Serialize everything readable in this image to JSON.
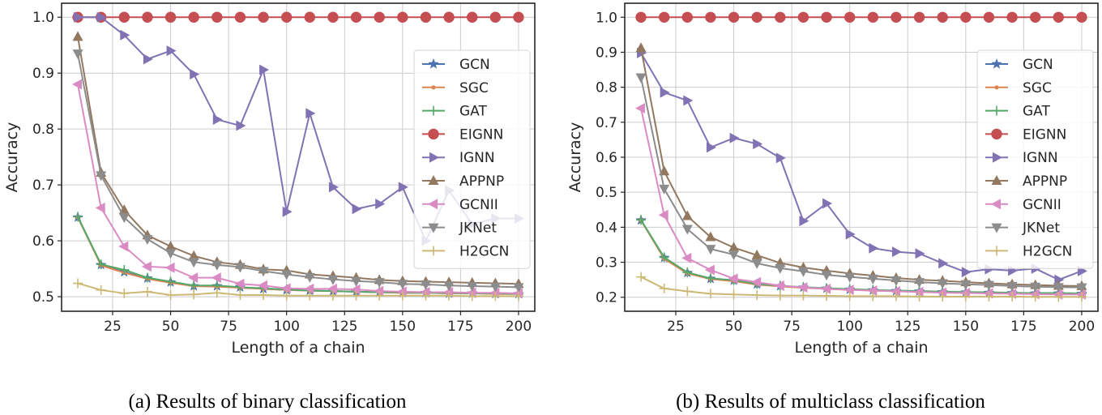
{
  "chart_data": [
    {
      "type": "line",
      "caption": "(a) Results of binary classification",
      "xlabel": "Length of a chain",
      "ylabel": "Accuracy",
      "xlim": [
        3,
        207
      ],
      "ylim": [
        0.474,
        1.025
      ],
      "xticks": [
        25,
        50,
        75,
        100,
        125,
        150,
        175,
        200
      ],
      "yticks": [
        0.5,
        0.6,
        0.7,
        0.8,
        0.9,
        1.0
      ],
      "ytick_labels": [
        "0.5",
        "0.6",
        "0.7",
        "0.8",
        "0.9",
        "1.0"
      ],
      "grid": true,
      "legend_position": "right",
      "x": [
        10,
        20,
        30,
        40,
        50,
        60,
        70,
        80,
        90,
        100,
        110,
        120,
        130,
        140,
        150,
        160,
        170,
        180,
        190,
        200
      ],
      "series": [
        {
          "name": "GCN",
          "color": "#4c72b0",
          "marker": "star",
          "values": [
            0.642,
            0.557,
            0.544,
            0.533,
            0.526,
            0.519,
            0.519,
            0.517,
            0.514,
            0.512,
            0.511,
            0.51,
            0.509,
            0.508,
            0.507,
            0.507,
            0.506,
            0.506,
            0.505,
            0.505
          ]
        },
        {
          "name": "SGC",
          "color": "#dd8452",
          "marker": "point",
          "values": [
            0.642,
            0.556,
            0.543,
            0.532,
            0.525,
            0.519,
            0.518,
            0.516,
            0.514,
            0.512,
            0.511,
            0.51,
            0.509,
            0.508,
            0.507,
            0.507,
            0.506,
            0.506,
            0.505,
            0.505
          ]
        },
        {
          "name": "GAT",
          "color": "#55a868",
          "marker": "plus",
          "values": [
            0.643,
            0.558,
            0.548,
            0.534,
            0.527,
            0.52,
            0.52,
            0.517,
            0.515,
            0.513,
            0.511,
            0.51,
            0.509,
            0.508,
            0.508,
            0.507,
            0.507,
            0.506,
            0.506,
            0.505
          ]
        },
        {
          "name": "EIGNN",
          "color": "#c44e52",
          "marker": "circle",
          "values": [
            1.0,
            1.0,
            1.0,
            1.0,
            1.0,
            1.0,
            1.0,
            1.0,
            1.0,
            1.0,
            1.0,
            1.0,
            1.0,
            1.0,
            1.0,
            1.0,
            1.0,
            1.0,
            1.0,
            1.0
          ]
        },
        {
          "name": "IGNN",
          "color": "#8172b3",
          "marker": "triangle-right",
          "values": [
            1.0,
            1.0,
            0.968,
            0.925,
            0.94,
            0.898,
            0.817,
            0.806,
            0.906,
            0.652,
            0.828,
            0.696,
            0.657,
            0.666,
            0.696,
            0.6,
            0.69,
            0.63,
            0.64,
            0.64
          ]
        },
        {
          "name": "APPNP",
          "color": "#937860",
          "marker": "triangle-up",
          "values": [
            0.965,
            0.722,
            0.655,
            0.61,
            0.59,
            0.573,
            0.562,
            0.557,
            0.549,
            0.547,
            0.54,
            0.537,
            0.534,
            0.53,
            0.528,
            0.527,
            0.526,
            0.525,
            0.524,
            0.523
          ]
        },
        {
          "name": "GCNII",
          "color": "#da8bc3",
          "marker": "triangle-left",
          "values": [
            0.88,
            0.659,
            0.59,
            0.554,
            0.552,
            0.534,
            0.534,
            0.523,
            0.52,
            0.515,
            0.514,
            0.514,
            0.513,
            0.51,
            0.509,
            0.508,
            0.508,
            0.507,
            0.507,
            0.506
          ]
        },
        {
          "name": "JKNet",
          "color": "#8c8c8c",
          "marker": "triangle-down",
          "values": [
            0.935,
            0.717,
            0.642,
            0.603,
            0.578,
            0.562,
            0.557,
            0.553,
            0.546,
            0.54,
            0.535,
            0.531,
            0.528,
            0.526,
            0.523,
            0.522,
            0.52,
            0.519,
            0.518,
            0.517
          ]
        },
        {
          "name": "H2GCN",
          "color": "#ccb974",
          "marker": "plus",
          "values": [
            0.524,
            0.512,
            0.506,
            0.509,
            0.503,
            0.504,
            0.507,
            0.503,
            0.503,
            0.502,
            0.502,
            0.502,
            0.502,
            0.502,
            0.502,
            0.502,
            0.502,
            0.501,
            0.501,
            0.501
          ]
        }
      ]
    },
    {
      "type": "line",
      "caption": "(b) Results of multiclass classification",
      "xlabel": "Length of a chain",
      "ylabel": "Accuracy",
      "xlim": [
        3,
        207
      ],
      "ylim": [
        0.16,
        1.04
      ],
      "xticks": [
        25,
        50,
        75,
        100,
        125,
        150,
        175,
        200
      ],
      "yticks": [
        0.2,
        0.3,
        0.4,
        0.5,
        0.6,
        0.7,
        0.8,
        0.9,
        1.0
      ],
      "ytick_labels": [
        "0.2",
        "0.3",
        "0.4",
        "0.5",
        "0.6",
        "0.7",
        "0.8",
        "0.9",
        "1.0"
      ],
      "grid": true,
      "legend_position": "right",
      "x": [
        10,
        20,
        30,
        40,
        50,
        60,
        70,
        80,
        90,
        100,
        110,
        120,
        130,
        140,
        150,
        160,
        170,
        180,
        190,
        200
      ],
      "series": [
        {
          "name": "GCN",
          "color": "#4c72b0",
          "marker": "star",
          "values": [
            0.42,
            0.313,
            0.27,
            0.253,
            0.248,
            0.237,
            0.232,
            0.228,
            0.225,
            0.222,
            0.22,
            0.218,
            0.217,
            0.215,
            0.214,
            0.213,
            0.212,
            0.211,
            0.211,
            0.21
          ]
        },
        {
          "name": "SGC",
          "color": "#dd8452",
          "marker": "point",
          "values": [
            0.42,
            0.31,
            0.268,
            0.252,
            0.246,
            0.236,
            0.231,
            0.227,
            0.224,
            0.221,
            0.219,
            0.217,
            0.216,
            0.214,
            0.213,
            0.212,
            0.211,
            0.21,
            0.21,
            0.209
          ]
        },
        {
          "name": "GAT",
          "color": "#55a868",
          "marker": "plus",
          "values": [
            0.421,
            0.314,
            0.271,
            0.254,
            0.249,
            0.238,
            0.233,
            0.229,
            0.226,
            0.223,
            0.221,
            0.219,
            0.218,
            0.216,
            0.215,
            0.214,
            0.213,
            0.212,
            0.212,
            0.211
          ]
        },
        {
          "name": "EIGNN",
          "color": "#c44e52",
          "marker": "circle",
          "values": [
            1.0,
            1.0,
            1.0,
            1.0,
            1.0,
            1.0,
            1.0,
            1.0,
            1.0,
            1.0,
            1.0,
            1.0,
            1.0,
            1.0,
            1.0,
            1.0,
            1.0,
            1.0,
            1.0,
            1.0
          ]
        },
        {
          "name": "IGNN",
          "color": "#8172b3",
          "marker": "triangle-right",
          "values": [
            0.898,
            0.785,
            0.762,
            0.628,
            0.655,
            0.638,
            0.598,
            0.418,
            0.468,
            0.38,
            0.34,
            0.33,
            0.325,
            0.297,
            0.272,
            0.28,
            0.276,
            0.282,
            0.25,
            0.275
          ]
        },
        {
          "name": "APPNP",
          "color": "#937860",
          "marker": "triangle-up",
          "values": [
            0.912,
            0.56,
            0.432,
            0.372,
            0.342,
            0.32,
            0.298,
            0.285,
            0.276,
            0.268,
            0.262,
            0.255,
            0.25,
            0.247,
            0.243,
            0.24,
            0.237,
            0.235,
            0.233,
            0.232
          ]
        },
        {
          "name": "GCNII",
          "color": "#da8bc3",
          "marker": "triangle-left",
          "values": [
            0.74,
            0.435,
            0.312,
            0.278,
            0.253,
            0.243,
            0.233,
            0.228,
            0.224,
            0.221,
            0.219,
            0.217,
            0.215,
            0.213,
            0.212,
            0.211,
            0.21,
            0.209,
            0.208,
            0.208
          ]
        },
        {
          "name": "JKNet",
          "color": "#8c8c8c",
          "marker": "triangle-down",
          "values": [
            0.828,
            0.51,
            0.395,
            0.338,
            0.322,
            0.297,
            0.283,
            0.274,
            0.264,
            0.258,
            0.253,
            0.248,
            0.243,
            0.24,
            0.237,
            0.235,
            0.232,
            0.23,
            0.229,
            0.228
          ]
        },
        {
          "name": "H2GCN",
          "color": "#ccb974",
          "marker": "plus",
          "values": [
            0.258,
            0.225,
            0.217,
            0.21,
            0.208,
            0.206,
            0.205,
            0.205,
            0.204,
            0.203,
            0.203,
            0.203,
            0.202,
            0.202,
            0.202,
            0.202,
            0.202,
            0.201,
            0.201,
            0.201
          ]
        }
      ]
    }
  ]
}
